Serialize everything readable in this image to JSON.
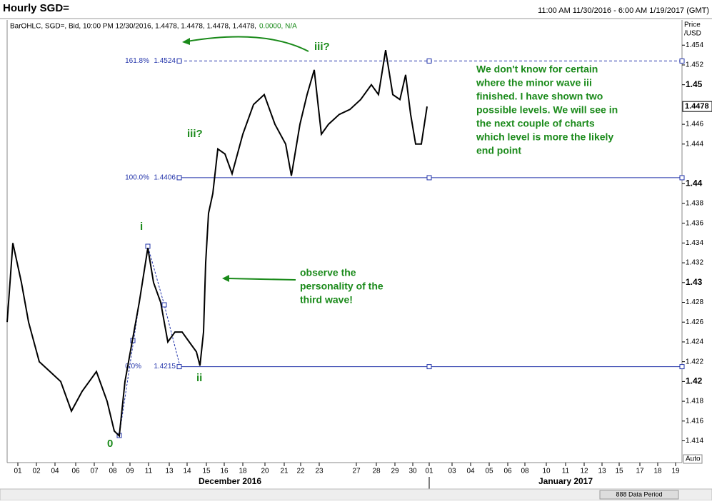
{
  "chart_data": {
    "type": "line",
    "title": "Hourly SGD=",
    "date_range": "11:00 AM 11/30/2016 - 6:00 AM 1/19/2017 (GMT)",
    "info": "BarOHLC, SGD=, Bid, 10:00 PM 12/30/2016, 1.4478, 1.4478, 1.4478, 1.4478,",
    "info_change": "0.0000, N/A",
    "y_label": [
      "Price",
      "/USD"
    ],
    "last_price": 1.4478,
    "color": "#000000",
    "x": [
      0,
      8,
      20,
      30,
      45,
      60,
      75,
      90,
      105,
      125,
      140,
      150,
      157,
      165,
      175,
      185,
      197,
      205,
      215,
      225,
      235,
      245,
      255,
      265,
      270,
      275,
      278,
      282,
      288,
      295,
      305,
      315,
      330,
      345,
      360,
      375,
      390,
      398,
      410,
      420,
      430,
      440,
      450,
      465,
      480,
      495,
      510,
      520,
      530,
      540,
      550,
      558,
      565,
      572,
      580,
      588
    ],
    "values": [
      1.426,
      1.434,
      1.43,
      1.426,
      1.422,
      1.421,
      1.42,
      1.417,
      1.419,
      1.421,
      1.418,
      1.415,
      1.4145,
      1.42,
      1.424,
      1.428,
      1.4335,
      1.43,
      1.428,
      1.424,
      1.425,
      1.425,
      1.424,
      1.423,
      1.4216,
      1.425,
      1.432,
      1.437,
      1.439,
      1.4435,
      1.443,
      1.441,
      1.445,
      1.448,
      1.449,
      1.446,
      1.444,
      1.4408,
      1.446,
      1.449,
      1.4515,
      1.445,
      1.446,
      1.447,
      1.4475,
      1.4485,
      1.45,
      1.449,
      1.4535,
      1.449,
      1.4485,
      1.451,
      1.447,
      1.444,
      1.444,
      1.4478
    ],
    "xlim": [
      0,
      945
    ],
    "ylim": [
      1.4118,
      1.4564
    ],
    "yticks": [
      1.414,
      1.416,
      1.418,
      1.42,
      1.422,
      1.424,
      1.426,
      1.428,
      1.43,
      1.432,
      1.434,
      1.436,
      1.438,
      1.44,
      1.444,
      1.446,
      1.45,
      1.452,
      1.454
    ],
    "xticks": [
      {
        "value": 15,
        "label": "01"
      },
      {
        "value": 41,
        "label": "02"
      },
      {
        "value": 67,
        "label": "04"
      },
      {
        "value": 96,
        "label": "06"
      },
      {
        "value": 122,
        "label": "07"
      },
      {
        "value": 148,
        "label": "08"
      },
      {
        "value": 172,
        "label": "09"
      },
      {
        "value": 198,
        "label": "11"
      },
      {
        "value": 227,
        "label": "13"
      },
      {
        "value": 252,
        "label": "14"
      },
      {
        "value": 279,
        "label": "15"
      },
      {
        "value": 304,
        "label": "16"
      },
      {
        "value": 330,
        "label": "18"
      },
      {
        "value": 361,
        "label": "20"
      },
      {
        "value": 388,
        "label": "21"
      },
      {
        "value": 411,
        "label": "22"
      },
      {
        "value": 437,
        "label": "23"
      },
      {
        "value": 489,
        "label": "27"
      },
      {
        "value": 517,
        "label": "28"
      },
      {
        "value": 543,
        "label": "29"
      },
      {
        "value": 568,
        "label": "30"
      },
      {
        "value": 591,
        "label": "01"
      },
      {
        "value": 623,
        "label": "03"
      },
      {
        "value": 649,
        "label": "04"
      },
      {
        "value": 675,
        "label": "05"
      },
      {
        "value": 701,
        "label": "06"
      },
      {
        "value": 725,
        "label": "08"
      },
      {
        "value": 755,
        "label": "10"
      },
      {
        "value": 782,
        "label": "11"
      },
      {
        "value": 808,
        "label": "12"
      },
      {
        "value": 833,
        "label": "13"
      },
      {
        "value": 857,
        "label": "15"
      },
      {
        "value": 886,
        "label": "17"
      },
      {
        "value": 911,
        "label": "18"
      },
      {
        "value": 936,
        "label": "19"
      }
    ],
    "months": [
      "December 2016",
      "January 2017"
    ],
    "levels": [
      {
        "pct": "161.8%",
        "value": 1.4524,
        "dashed": true
      },
      {
        "pct": "100.0%",
        "value": 1.4406,
        "dashed": false
      },
      {
        "pct": "0.0%",
        "value": 1.4215,
        "dashed": false
      }
    ],
    "wave_labels": [
      "0",
      "i",
      "ii",
      "iii?",
      "iii?"
    ],
    "comment": [
      "We don't know for certain",
      "where the minor wave iii",
      "finished. I have shown two",
      "possible levels. We will see in",
      "the next couple of charts",
      "which level is more the likely",
      "end point"
    ],
    "note": [
      "observe the",
      "personality of the",
      "third wave!"
    ],
    "data_period": "888 Data Period",
    "auto": "Auto"
  }
}
